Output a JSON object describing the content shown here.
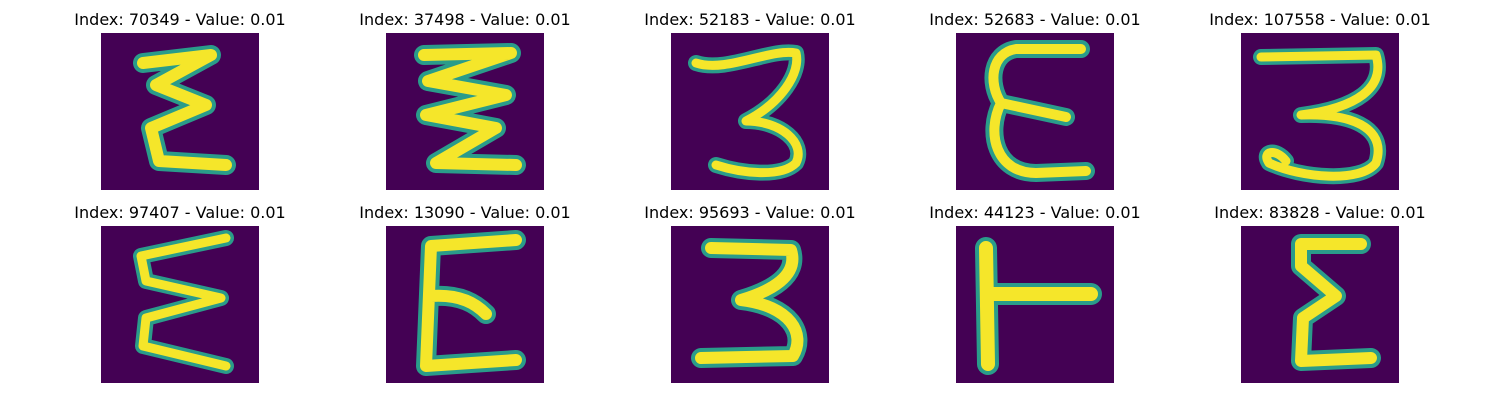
{
  "panels": [
    {
      "title": "Index: 70349 - Value: 0.01",
      "glyph": "Σ-like zigzag"
    },
    {
      "title": "Index: 37498 - Value: 0.01",
      "glyph": "stacked zigzag"
    },
    {
      "title": "Index: 52183 - Value: 0.01",
      "glyph": "3"
    },
    {
      "title": "Index: 52683 - Value: 0.01",
      "glyph": "E / ε"
    },
    {
      "title": "Index: 107558 - Value: 0.01",
      "glyph": "3 with loop"
    },
    {
      "title": "Index: 97407 - Value: 0.01",
      "glyph": "zigzag"
    },
    {
      "title": "Index: 13090 - Value: 0.01",
      "glyph": "E / ε"
    },
    {
      "title": "Index: 95693 - Value: 0.01",
      "glyph": "3"
    },
    {
      "title": "Index: 44123 - Value: 0.01",
      "glyph": "⊢ (T rotated)"
    },
    {
      "title": "Index: 83828 - Value: 0.01",
      "glyph": "Σ-like"
    }
  ],
  "colors": {
    "background": "#440154",
    "mid": "#2a9c8a",
    "stroke": "#f5e62a",
    "edge": "#7fd34e"
  }
}
